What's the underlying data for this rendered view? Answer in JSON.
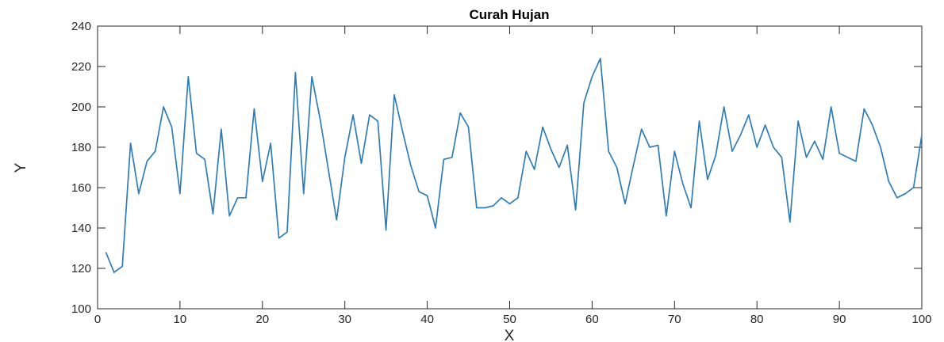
{
  "chart_data": {
    "type": "line",
    "title": "Curah Hujan",
    "xlabel": "X",
    "ylabel": "Y",
    "xlim": [
      0,
      100
    ],
    "ylim": [
      100,
      240
    ],
    "xticks": [
      "0",
      "10",
      "20",
      "30",
      "40",
      "50",
      "60",
      "70",
      "80",
      "90",
      "100"
    ],
    "yticks": [
      "100",
      "120",
      "140",
      "160",
      "180",
      "200",
      "220",
      "240"
    ],
    "grid": false,
    "line_color": "#2f7db8",
    "axis_color": "#262626",
    "series": [
      {
        "x": [
          1,
          2,
          3,
          4,
          5,
          6,
          7,
          8,
          9,
          10,
          11,
          12,
          13,
          14,
          15,
          16,
          17,
          18,
          19,
          20,
          21,
          22,
          23,
          24,
          25,
          26,
          27,
          28,
          29,
          30,
          31,
          32,
          33,
          34,
          35,
          36,
          37,
          38,
          39,
          40,
          41,
          42,
          43,
          44,
          45,
          46,
          47,
          48,
          49,
          50,
          51,
          52,
          53,
          54,
          55,
          56,
          57,
          58,
          59,
          60,
          61,
          62,
          63,
          64,
          65,
          66,
          67,
          68,
          69,
          70,
          71,
          72,
          73,
          74,
          75,
          76,
          77,
          78,
          79,
          80,
          81,
          82,
          83,
          84,
          85,
          86,
          87,
          88,
          89,
          90,
          91,
          92,
          93,
          94,
          95,
          96,
          97,
          98,
          99,
          100
        ],
        "values": [
          128,
          118,
          121,
          182,
          157,
          173,
          178,
          200,
          190,
          157,
          215,
          177,
          174,
          147,
          189,
          146,
          155,
          155,
          199,
          163,
          182,
          135,
          138,
          217,
          157,
          215,
          194,
          169,
          144,
          175,
          196,
          172,
          196,
          193,
          139,
          206,
          188,
          171,
          158,
          156,
          140,
          174,
          175,
          197,
          190,
          150,
          150,
          151,
          155,
          152,
          155,
          178,
          169,
          190,
          179,
          170,
          181,
          149,
          202,
          215,
          224,
          178,
          170,
          152,
          171,
          189,
          180,
          181,
          146,
          178,
          162,
          150,
          193,
          164,
          176,
          200,
          178,
          186,
          196,
          180,
          191,
          180,
          175,
          143,
          193,
          175,
          183,
          174,
          200,
          177,
          175,
          173,
          199,
          191,
          180,
          163,
          155,
          157,
          160,
          186
        ]
      }
    ]
  }
}
